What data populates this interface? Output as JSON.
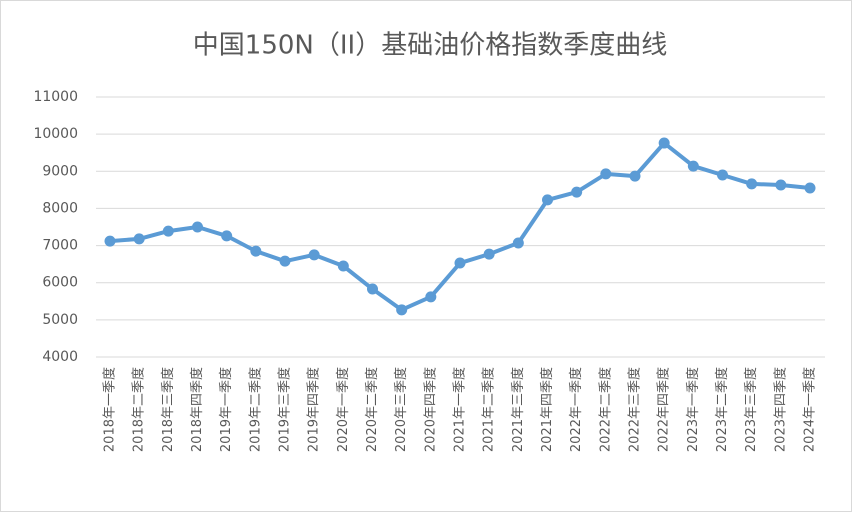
{
  "chart_data": {
    "type": "line",
    "title": "中国150N（II）基础油价格指数季度曲线",
    "categories": [
      "2018年一季度",
      "2018年二季度",
      "2018年三季度",
      "2018年四季度",
      "2019年一季度",
      "2019年二季度",
      "2019年三季度",
      "2019年四季度",
      "2020年一季度",
      "2020年二季度",
      "2020年三季度",
      "2020年四季度",
      "2021年一季度",
      "2021年二季度",
      "2021年三季度",
      "2021年四季度",
      "2022年一季度",
      "2022年二季度",
      "2022年三季度",
      "2022年四季度",
      "2023年一季度",
      "2023年二季度",
      "2023年三季度",
      "2023年四季度",
      "2024年一季度"
    ],
    "values": [
      7120,
      7180,
      7390,
      7500,
      7260,
      6850,
      6580,
      6750,
      6450,
      5830,
      5270,
      5620,
      6530,
      6770,
      7070,
      8230,
      8440,
      8930,
      8870,
      9760,
      9140,
      8900,
      8660,
      8630,
      8550
    ],
    "color": "#5b9bd5",
    "ylim": [
      4000,
      11000
    ],
    "yticks": [
      4000,
      5000,
      6000,
      7000,
      8000,
      9000,
      10000,
      11000
    ],
    "grid": true
  }
}
